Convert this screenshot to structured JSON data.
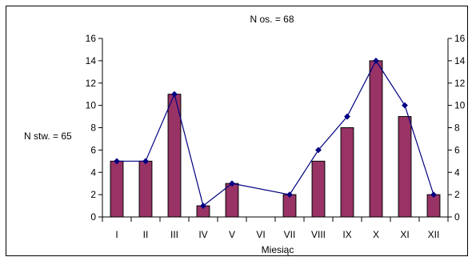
{
  "chart_data": {
    "type": "bar",
    "title": "N os. = 68",
    "side_label": "N stw. = 65",
    "xlabel": "Miesiąc",
    "ylabel": "",
    "categories": [
      "I",
      "II",
      "III",
      "IV",
      "V",
      "VI",
      "VII",
      "VIII",
      "IX",
      "X",
      "XI",
      "XII"
    ],
    "series": [
      {
        "type": "bar",
        "values": [
          5,
          5,
          11,
          1,
          3,
          0,
          2,
          5,
          8,
          14,
          9,
          2
        ]
      },
      {
        "type": "line",
        "values": [
          5,
          5,
          11,
          1,
          3,
          null,
          2,
          6,
          9,
          14,
          10,
          2
        ]
      }
    ],
    "ylim": [
      0,
      16
    ],
    "yticks": [
      0,
      2,
      4,
      6,
      8,
      10,
      12,
      14,
      16
    ],
    "secondary_axis": true,
    "grid": false,
    "colors": {
      "bar_fill": "#993366",
      "bar_stroke": "#000000",
      "line": "#000080",
      "marker": "#000080"
    }
  }
}
